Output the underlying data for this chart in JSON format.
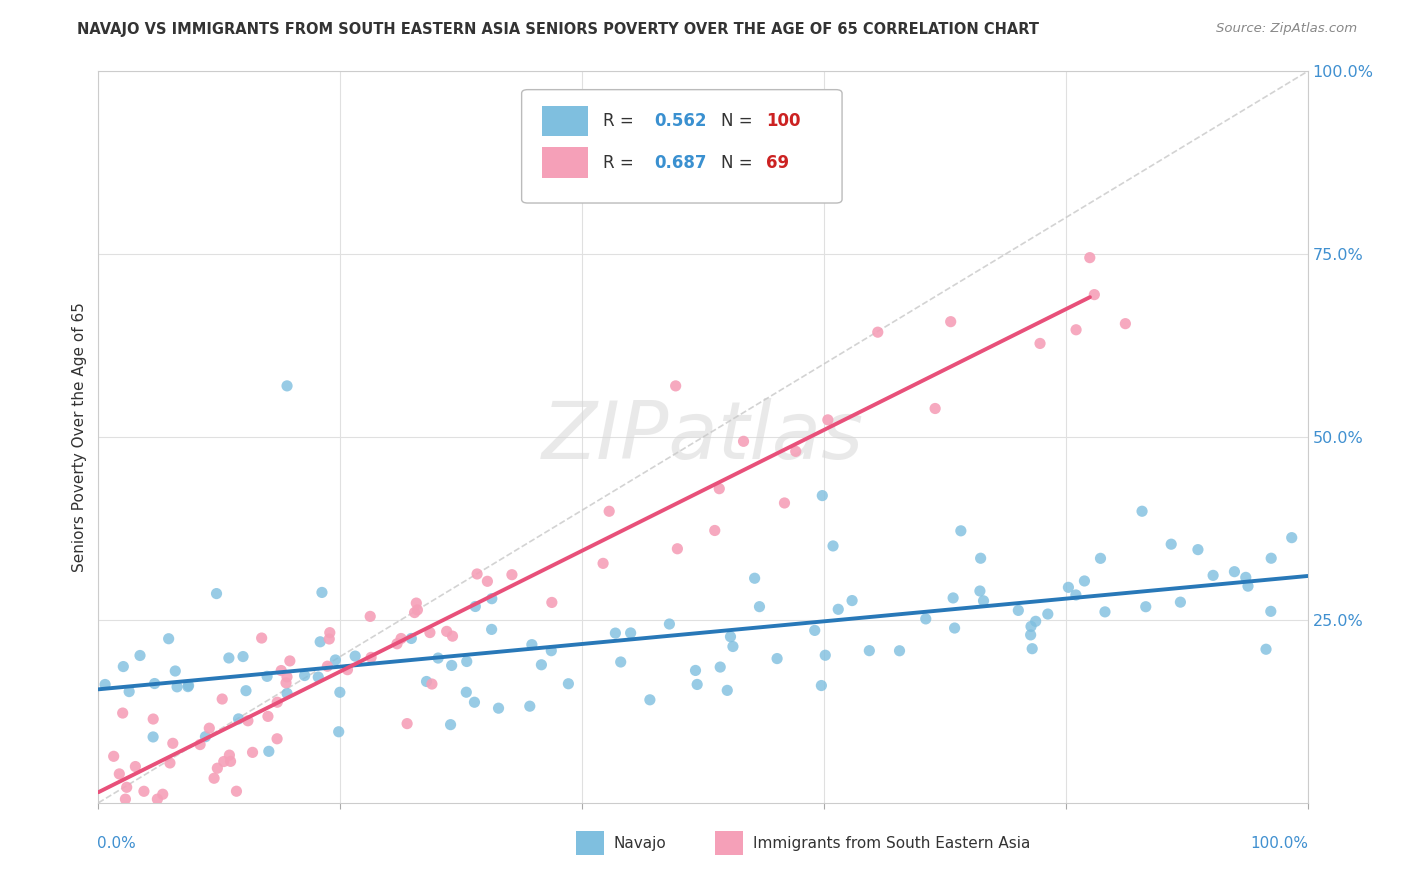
{
  "title": "NAVAJO VS IMMIGRANTS FROM SOUTH EASTERN ASIA SENIORS POVERTY OVER THE AGE OF 65 CORRELATION CHART",
  "source": "Source: ZipAtlas.com",
  "ylabel": "Seniors Poverty Over the Age of 65",
  "legend_navajo_R": "0.562",
  "legend_navajo_N": "100",
  "legend_immigrants_R": "0.687",
  "legend_immigrants_N": "69",
  "navajo_color": "#7fbfdf",
  "immigrants_color": "#f5a0b8",
  "navajo_line_color": "#2878b8",
  "immigrants_line_color": "#e8507a",
  "diagonal_line_color": "#c8c8c8",
  "background_color": "#ffffff",
  "grid_color": "#e0e0e0",
  "ytick_color": "#4090d0",
  "nav_seed": 42,
  "imm_seed": 77,
  "nav_n": 100,
  "imm_n": 69,
  "nav_slope": 0.19,
  "nav_intercept": 0.132,
  "nav_noise_std": 0.055,
  "imm_slope": 0.82,
  "imm_intercept": 0.02,
  "imm_noise_std": 0.055
}
